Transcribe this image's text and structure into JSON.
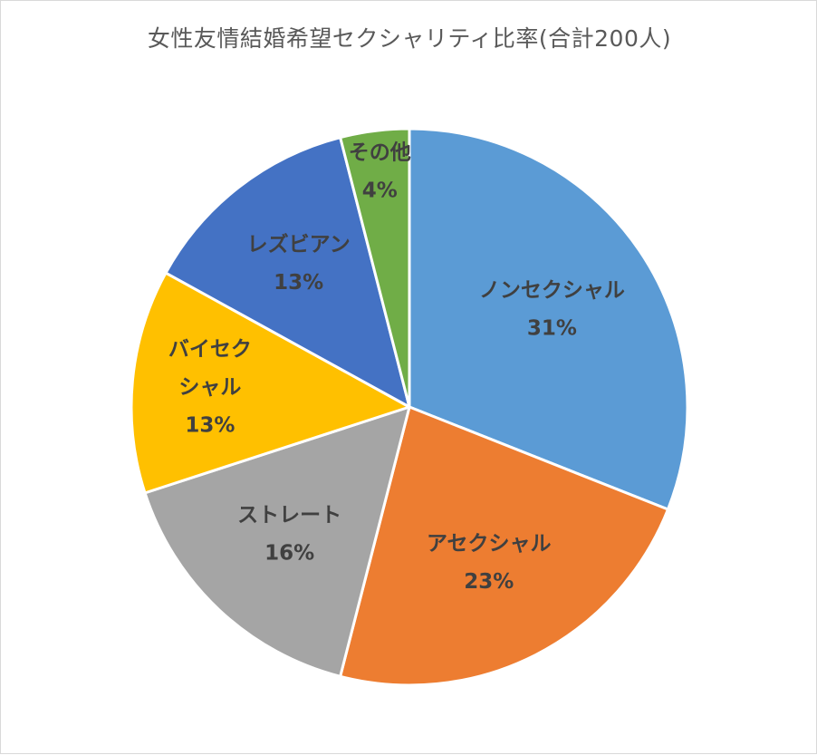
{
  "chart_data": {
    "type": "pie",
    "title": "女性友情結婚希望セクシャリティ比率(合計200人)",
    "slices": [
      {
        "label": "ノンセクシャル",
        "value": 31,
        "value_label": "31%",
        "color": "#5B9BD5"
      },
      {
        "label": "アセクシャル",
        "value": 23,
        "value_label": "23%",
        "color": "#ED7D31"
      },
      {
        "label": "ストレート",
        "value": 16,
        "value_label": "16%",
        "color": "#A5A5A5"
      },
      {
        "label": "バイセクシャル",
        "value": 13,
        "value_label": "13%",
        "color": "#FFC000",
        "label_lines": [
          "バイセク",
          "シャル"
        ]
      },
      {
        "label": "レズビアン",
        "value": 13,
        "value_label": "13%",
        "color": "#4472C4"
      },
      {
        "label": "その他",
        "value": 4,
        "value_label": "4%",
        "color": "#70AD47"
      }
    ],
    "start_angle_deg": 0,
    "direction": "clockwise",
    "legend": "none",
    "data_labels": "inside"
  }
}
